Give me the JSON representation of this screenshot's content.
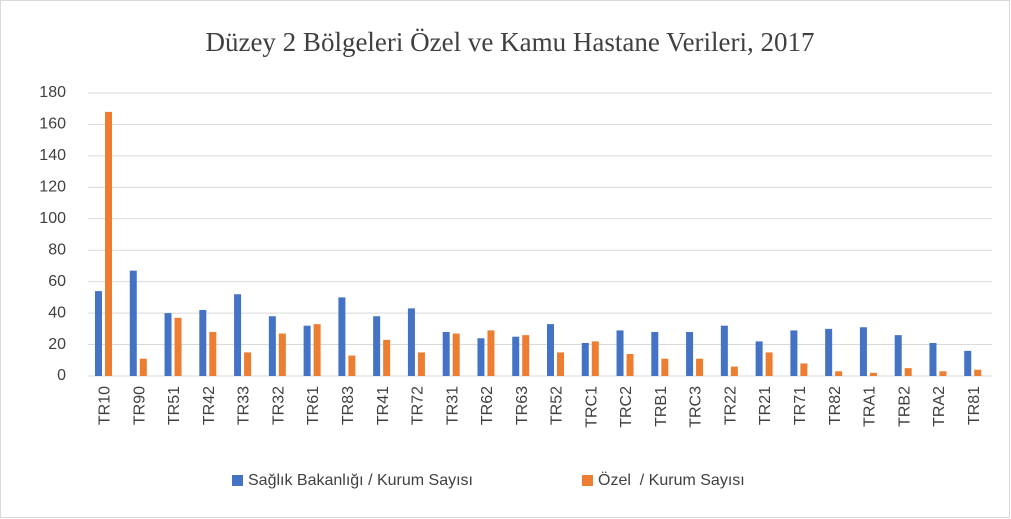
{
  "chart_data": {
    "type": "bar",
    "title": "Düzey 2 Bölgeleri Özel ve Kamu Hastane Verileri, 2017",
    "categories": [
      "TR10",
      "TR90",
      "TR51",
      "TR42",
      "TR33",
      "TR32",
      "TR61",
      "TR83",
      "TR41",
      "TR72",
      "TR31",
      "TR62",
      "TR63",
      "TR52",
      "TRC1",
      "TRC2",
      "TRB1",
      "TRC3",
      "TR22",
      "TR21",
      "TR71",
      "TR82",
      "TRA1",
      "TRB2",
      "TRA2",
      "TR81"
    ],
    "series": [
      {
        "name": "Sağlık Bakanlığı / Kurum Sayısı",
        "color": "#4472c4",
        "values": [
          54,
          67,
          40,
          42,
          52,
          38,
          32,
          50,
          38,
          43,
          28,
          24,
          25,
          33,
          21,
          29,
          28,
          28,
          32,
          22,
          29,
          30,
          31,
          26,
          21,
          16
        ]
      },
      {
        "name": "Özel  / Kurum Sayısı",
        "color": "#ed7d31",
        "values": [
          168,
          11,
          37,
          28,
          15,
          27,
          33,
          13,
          23,
          15,
          27,
          29,
          26,
          15,
          22,
          14,
          11,
          11,
          6,
          15,
          8,
          3,
          2,
          5,
          3,
          4
        ]
      }
    ],
    "ylim": [
      0,
      180
    ],
    "yticks": [
      0,
      20,
      40,
      60,
      80,
      100,
      120,
      140,
      160,
      180
    ],
    "grid": true,
    "legend": "bottom"
  }
}
